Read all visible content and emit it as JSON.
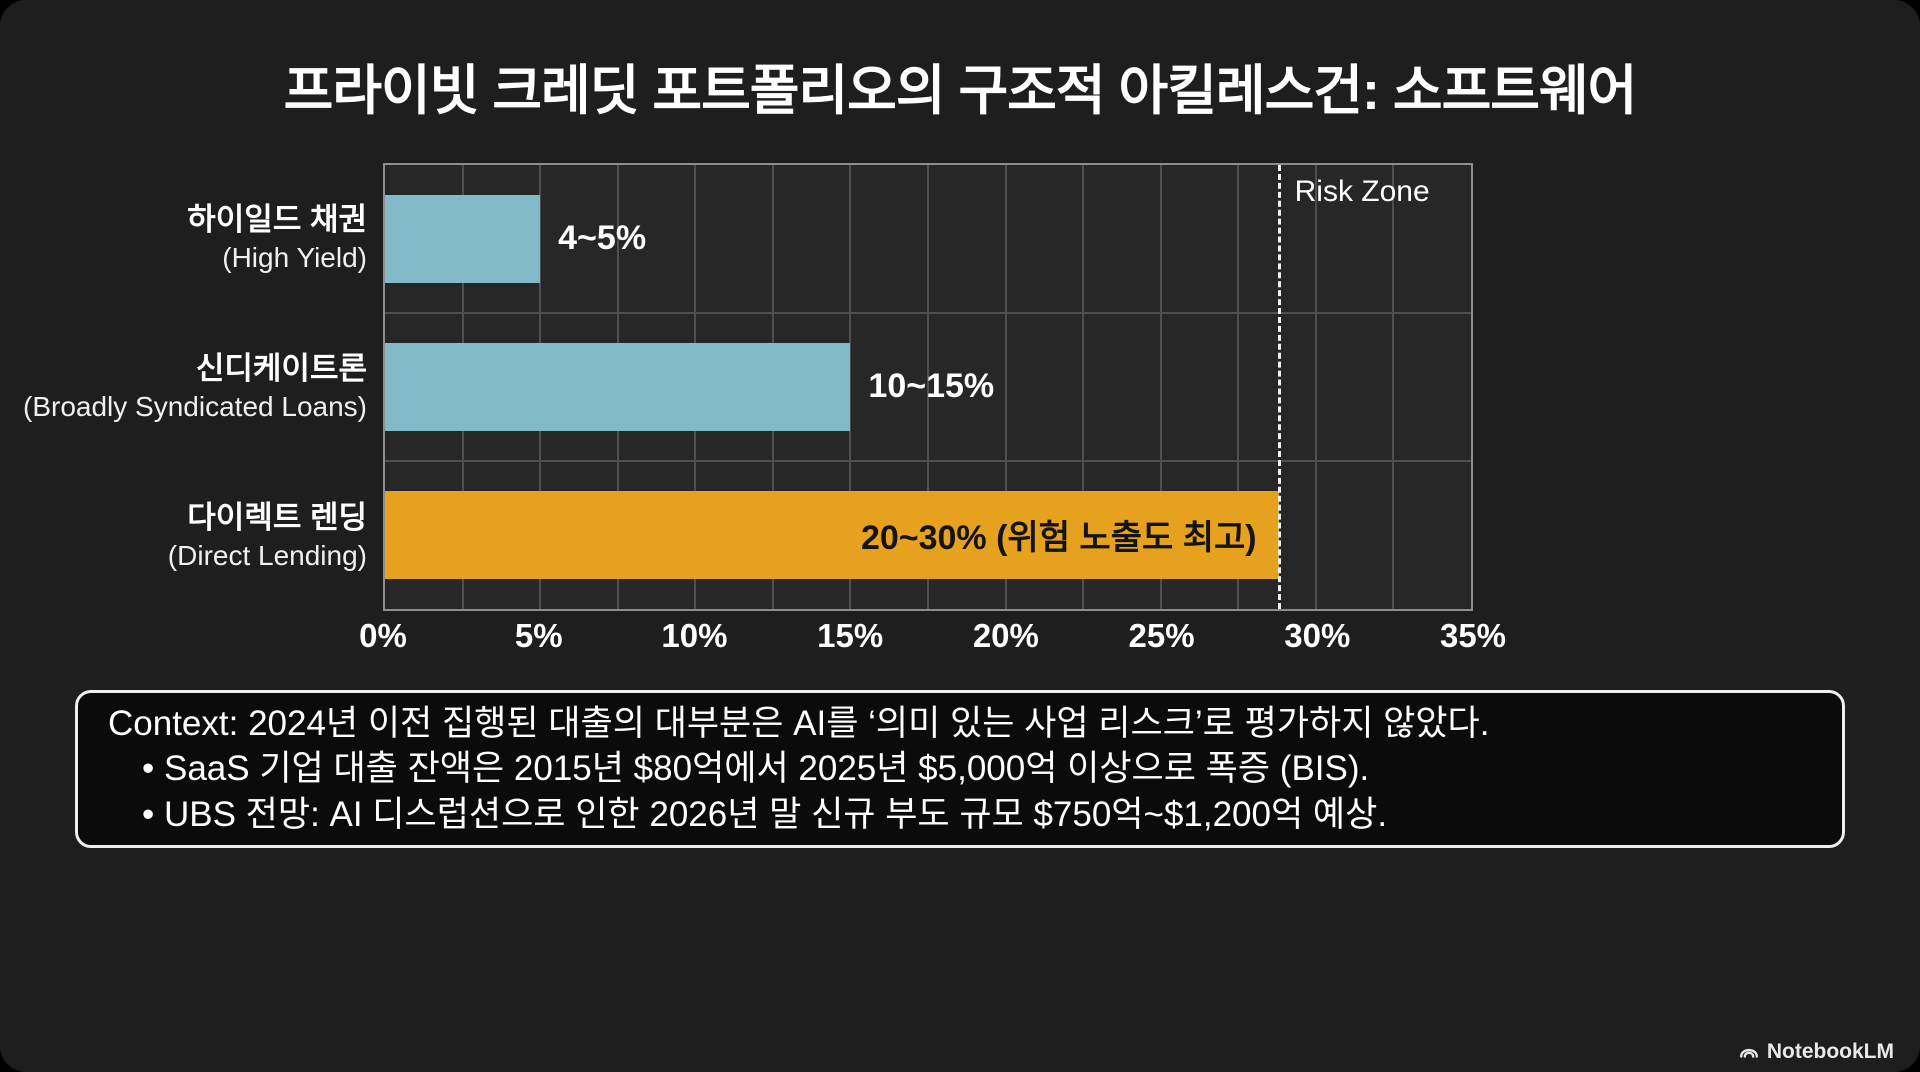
{
  "title": "프라이빗 크레딧 포트폴리오의 구조적 아킬레스건: 소프트웨어",
  "badge": {
    "label": "NotebookLM"
  },
  "context": {
    "lines": [
      "Context: 2024년 이전 집행된 대출의 대부분은 AI를 ‘의미 있는 사업 리스크’로 평가하지 않았다.",
      "• SaaS 기업 대출 잔액은 2015년 $80억에서 2025년 $5,000억 이상으로 폭증 (BIS).",
      "• UBS 전망: AI 디스럽션으로 인한 2026년 말 신규 부도 규모 $750억~$1,200억 예상."
    ]
  },
  "colors": {
    "background": "#1e1e1e",
    "plot_background": "#272727",
    "gridline": "#4f4f4f",
    "teal_bar": "#82b9c6",
    "orange_bar": "#e6a11e",
    "risk_line": "#f2f2f2",
    "text": "#ffffff"
  },
  "chart_data": {
    "type": "bar",
    "orientation": "horizontal",
    "title": "프라이빗 크레딧 포트폴리오의 구조적 아킬레스건: 소프트웨어",
    "xlabel": "",
    "ylabel": "",
    "xlim": [
      0,
      35
    ],
    "x_ticks": [
      0,
      5,
      10,
      15,
      20,
      25,
      30,
      35
    ],
    "x_tick_suffix": "%",
    "minor_grid_step": 2.5,
    "grid": true,
    "legend": false,
    "bars": [
      {
        "category_ko": "하이일드 채권",
        "category_en": "(High Yield)",
        "range_pct": [
          4,
          5
        ],
        "bar_value_pct": 5,
        "label": "4~5%",
        "color": "#82b9c6",
        "label_inside": false
      },
      {
        "category_ko": "신디케이트론",
        "category_en": "(Broadly Syndicated Loans)",
        "range_pct": [
          10,
          15
        ],
        "bar_value_pct": 15,
        "label": "10~15%",
        "color": "#82b9c6",
        "label_inside": false
      },
      {
        "category_ko": "다이렉트 렌딩",
        "category_en": "(Direct Lending)",
        "range_pct": [
          20,
          30
        ],
        "bar_value_pct": 28.8,
        "label": "20~30% (위험 노출도 최고)",
        "color": "#e6a11e",
        "label_inside": true
      }
    ],
    "risk_line": {
      "label": "Risk Zone",
      "value_pct": 28.8
    }
  }
}
